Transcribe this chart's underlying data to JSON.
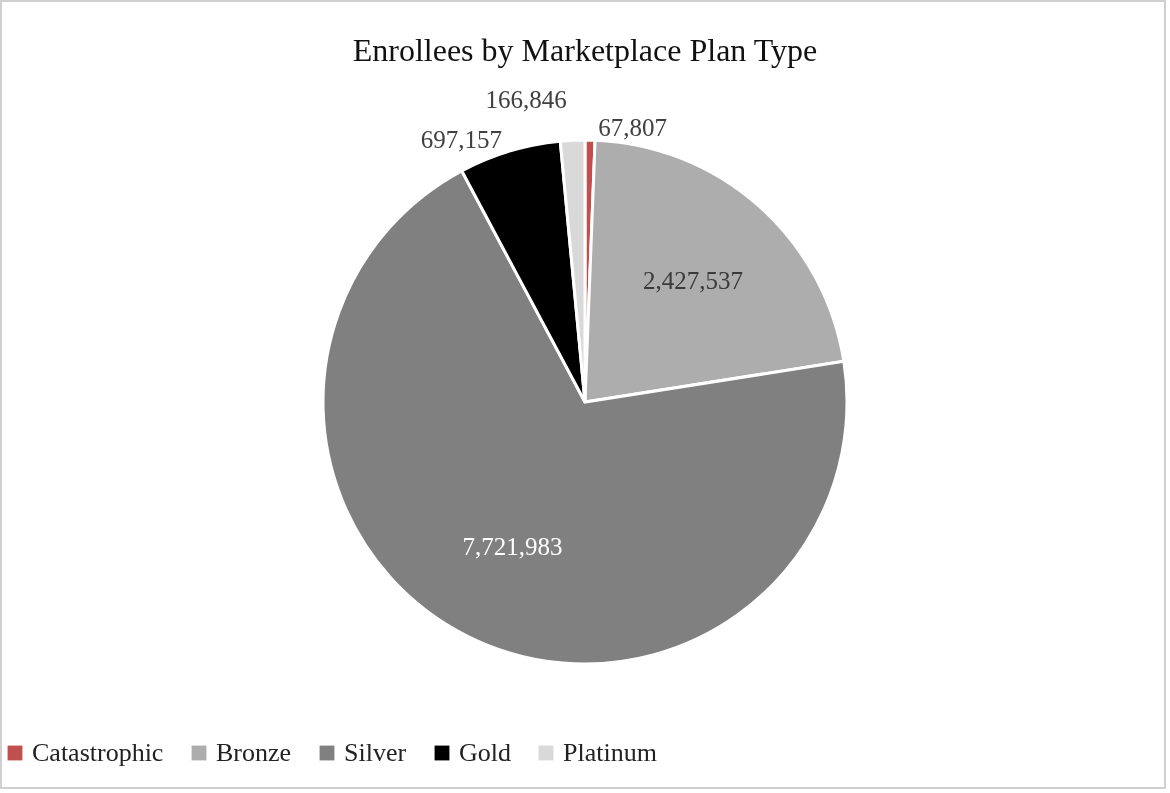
{
  "chart_data": {
    "type": "pie",
    "title": "Enrollees by Marketplace Plan Type",
    "categories": [
      "Catastrophic",
      "Bronze",
      "Silver",
      "Gold",
      "Platinum"
    ],
    "values": [
      67807,
      2427537,
      7721983,
      697157,
      166846
    ],
    "colors": [
      "#c0504d",
      "#adadad",
      "#808080",
      "#000000",
      "#d9d9d9"
    ],
    "value_labels": [
      "67,807",
      "2,427,537",
      "7,721,983",
      "697,157",
      "166,846"
    ],
    "legend": "bottom"
  }
}
